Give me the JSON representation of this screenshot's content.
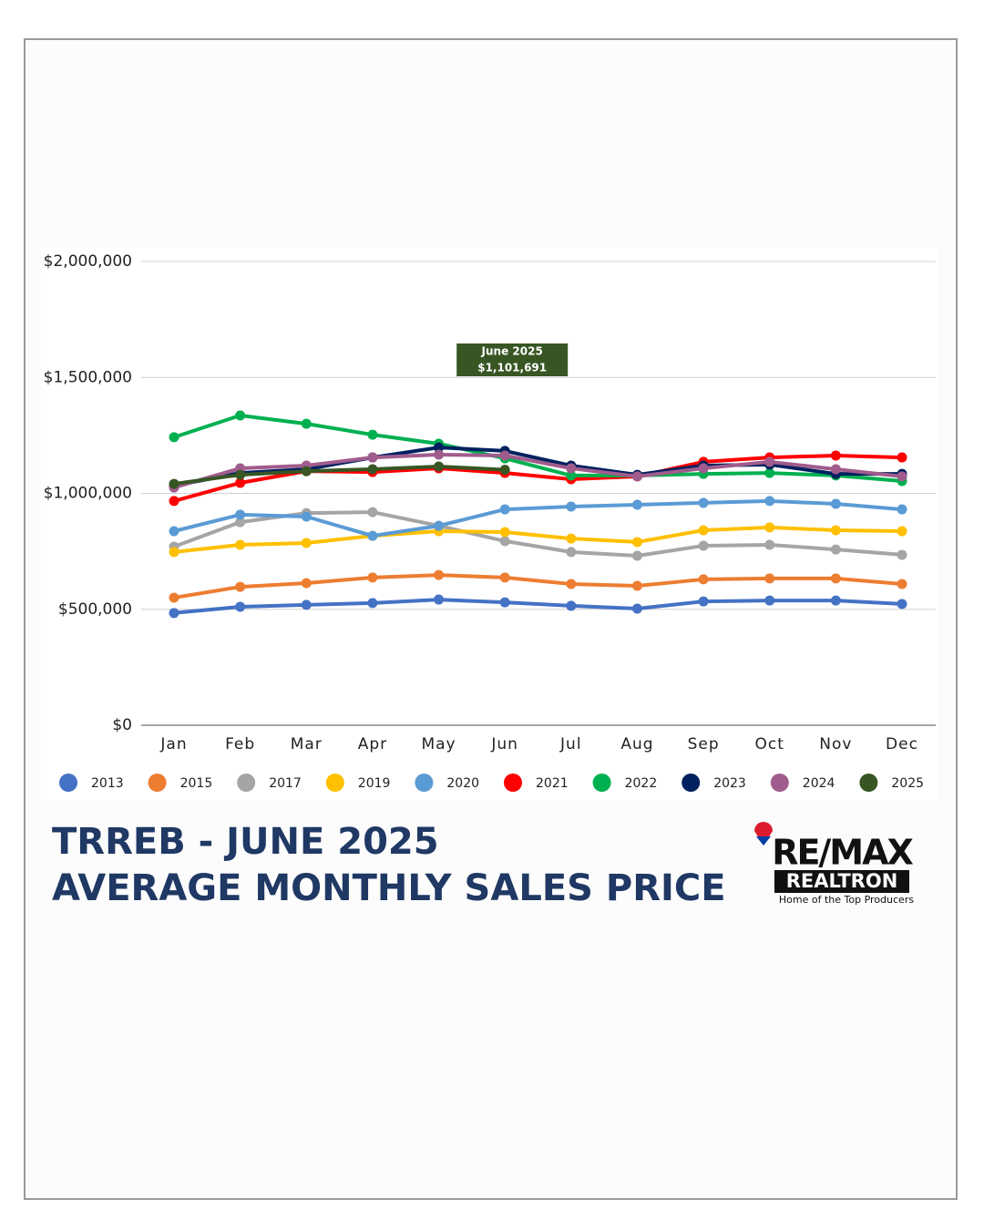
{
  "chart_data": {
    "type": "line",
    "title": [
      "TRREB - JUNE 2025",
      "AVERAGE MONTHLY SALES PRICE"
    ],
    "categories": [
      "Jan",
      "Feb",
      "Mar",
      "Apr",
      "May",
      "Jun",
      "Jul",
      "Aug",
      "Sep",
      "Oct",
      "Nov",
      "Dec"
    ],
    "ylim": [
      0,
      2000000
    ],
    "yticks": [
      {
        "value": 0,
        "label": "$0"
      },
      {
        "value": 500000,
        "label": "$500,000"
      },
      {
        "value": 1000000,
        "label": "$1,000,000"
      },
      {
        "value": 1500000,
        "label": "$1,500,000"
      },
      {
        "value": 2000000,
        "label": "$2,000,000"
      }
    ],
    "grid": true,
    "legend": "bottom",
    "annotation": "June 2025",
    "series": [
      {
        "name": "2013",
        "color": "#4472c4",
        "values": [
          484000,
          511000,
          519000,
          527000,
          542000,
          530000,
          515000,
          503000,
          534000,
          538000,
          538000,
          523000
        ]
      },
      {
        "name": "2015",
        "color": "#ed7d31",
        "values": [
          550000,
          597000,
          613000,
          637000,
          648000,
          637000,
          609000,
          601000,
          629000,
          633000,
          633000,
          609000
        ]
      },
      {
        "name": "2017",
        "color": "#a5a5a5",
        "values": [
          770000,
          876000,
          915000,
          919000,
          860000,
          794000,
          747000,
          731000,
          774000,
          778000,
          758000,
          735000
        ]
      },
      {
        "name": "2019",
        "color": "#ffc000",
        "values": [
          747000,
          778000,
          786000,
          817000,
          837000,
          833000,
          805000,
          790000,
          841000,
          853000,
          841000,
          837000
        ]
      },
      {
        "name": "2020",
        "color": "#5b9bd5",
        "values": [
          837000,
          908000,
          900000,
          817000,
          860000,
          931000,
          943000,
          951000,
          959000,
          967000,
          955000,
          931000
        ]
      },
      {
        "name": "2021",
        "color": "#ff0000",
        "values": [
          967000,
          1045000,
          1096000,
          1092000,
          1108000,
          1088000,
          1061000,
          1073000,
          1136000,
          1155000,
          1163000,
          1155000
        ]
      },
      {
        "name": "2022",
        "color": "#00b050",
        "values": [
          1242000,
          1336000,
          1300000,
          1253000,
          1214000,
          1151000,
          1077000,
          1077000,
          1084000,
          1088000,
          1077000,
          1053000
        ]
      },
      {
        "name": "2023",
        "color": "#002060",
        "values": [
          1033000,
          1088000,
          1104000,
          1155000,
          1198000,
          1183000,
          1120000,
          1080000,
          1120000,
          1124000,
          1084000,
          1084000
        ]
      },
      {
        "name": "2024",
        "color": "#a05c8c",
        "values": [
          1025000,
          1108000,
          1120000,
          1155000,
          1167000,
          1163000,
          1108000,
          1073000,
          1108000,
          1136000,
          1104000,
          1073000
        ]
      },
      {
        "name": "2025",
        "color": "#375623",
        "values": [
          1041000,
          1080000,
          1096000,
          1104000,
          1116000,
          1101691,
          null,
          null,
          null,
          null,
          null,
          null
        ],
        "value_labels": [
          null,
          null,
          null,
          null,
          null,
          "$1,101,691"
        ]
      }
    ]
  },
  "logo": {
    "brand": "RE/MAX",
    "name": "REALTRON",
    "tagline": "Home of the Top Producers"
  }
}
